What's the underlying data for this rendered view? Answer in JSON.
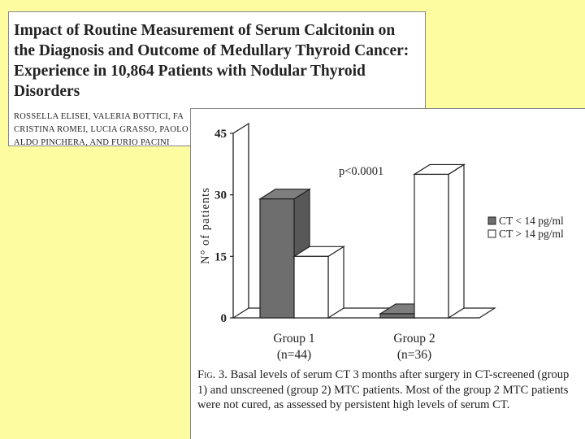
{
  "slide": {
    "title": "Impact of Routine Measurement of Serum Calcitonin on the Diagnosis and Outcome of Medullary Thyroid Cancer: Experience in 10,864 Patients with Nodular Thyroid Disorders",
    "authors": "ROSSELLA ELISEI, VALERIA BOTTICI, FA\nCRISTINA ROMEI, LUCIA GRASSO, PAOLO\nALDO PINCHERA, AND FURIO PACINI"
  },
  "caption": {
    "fig_label": "Fig. 3.",
    "text": "Basal levels of serum CT 3 months after surgery in CT-screened (group 1) and unscreened (group 2) MTC patients. Most of the group 2 MTC patients were not cured, as assessed by persistent high levels of serum CT."
  },
  "chart_data": {
    "type": "bar",
    "title": "",
    "xlabel": "",
    "ylabel": "N° of patients",
    "ylim": [
      0,
      45
    ],
    "yticks": [
      "0",
      "15",
      "30",
      "45"
    ],
    "categories": [
      "Group 1",
      "Group 2"
    ],
    "category_sublabels": [
      "(n=44)",
      "(n=36)"
    ],
    "series": [
      {
        "name": "CT < 14 pg/ml",
        "values": [
          29,
          1
        ],
        "color": "#6e6e6e"
      },
      {
        "name": "CT > 14 pg/ml",
        "values": [
          15,
          35
        ],
        "color": "#ffffff"
      }
    ],
    "annotation": "p<0.0001",
    "legend_position": "right",
    "grid": false,
    "style": "3d"
  }
}
